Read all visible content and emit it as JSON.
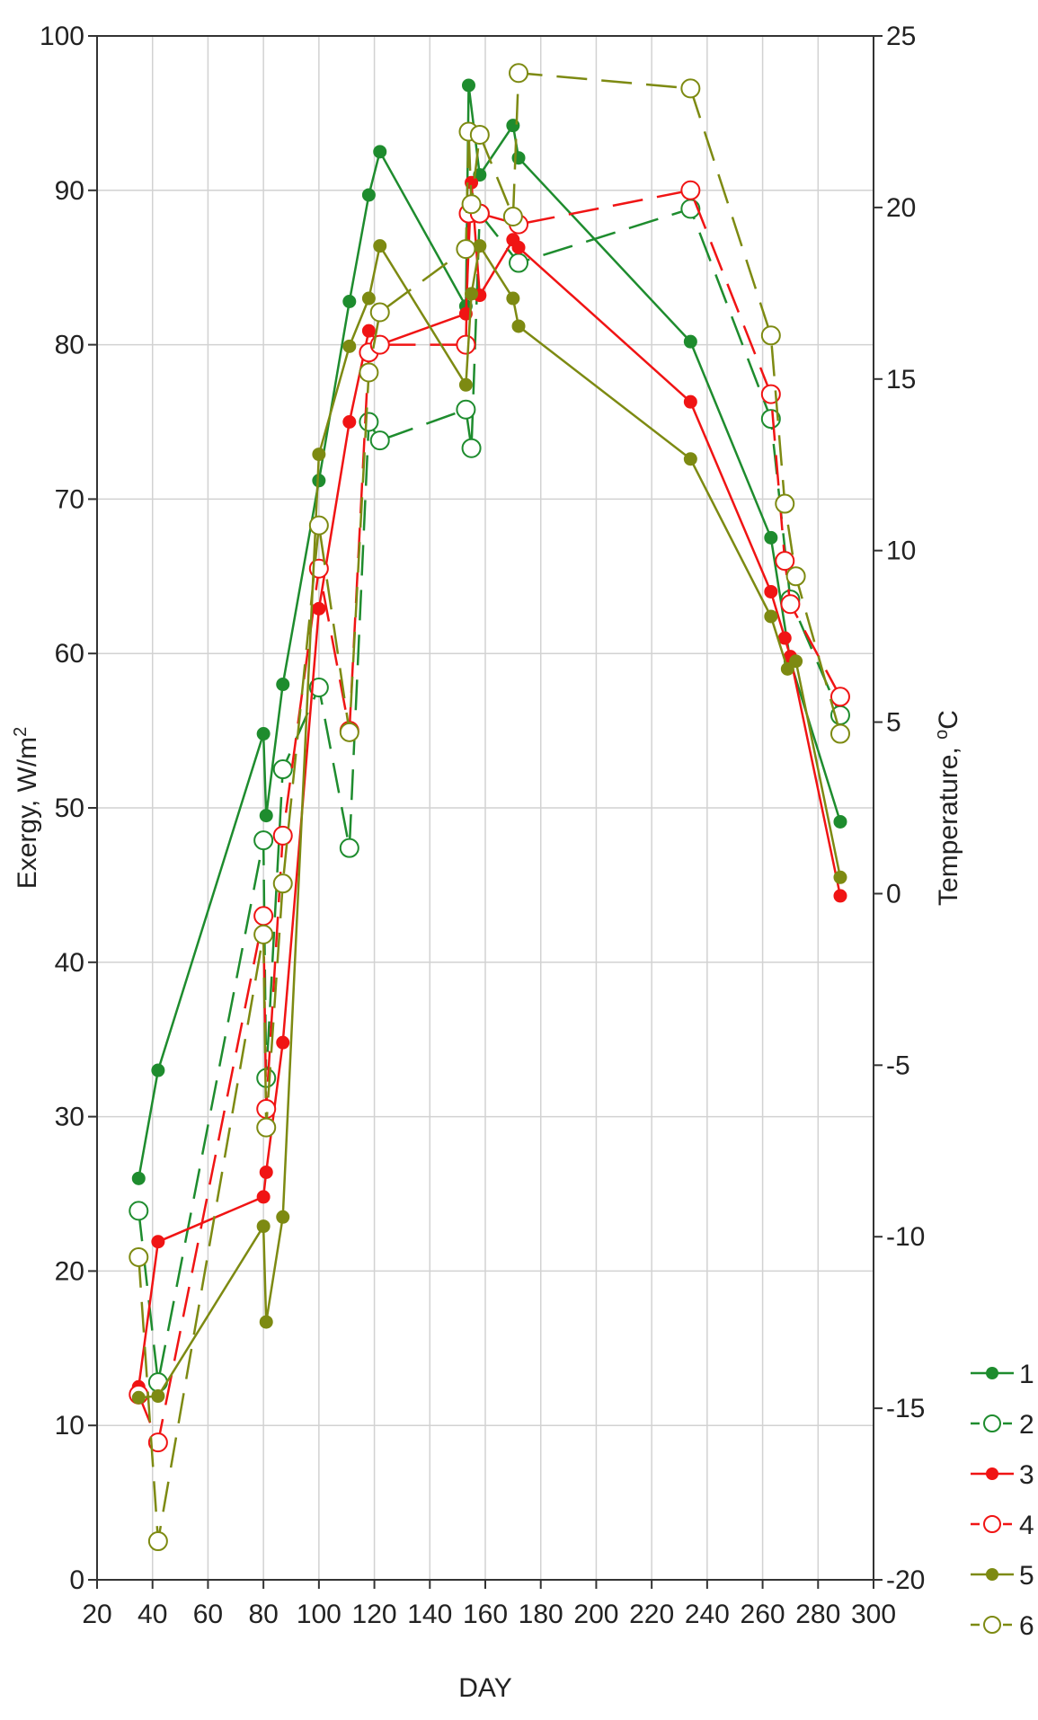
{
  "chart_data": {
    "type": "line",
    "xlabel": "DAY",
    "ylabel": "Exergy, W/m",
    "ylabel_sup": "2",
    "y2label": "Temperature, ",
    "y2label_sup": "o",
    "y2label_unit": "C",
    "xlim": [
      20,
      300
    ],
    "ylim": [
      0,
      100
    ],
    "y2lim": [
      -20,
      25
    ],
    "xticks": [
      20,
      40,
      60,
      80,
      100,
      120,
      140,
      160,
      180,
      200,
      220,
      240,
      260,
      280,
      300
    ],
    "yticks": [
      0,
      10,
      20,
      30,
      40,
      50,
      60,
      70,
      80,
      90,
      100
    ],
    "y2ticks": [
      -20,
      -15,
      -10,
      -5,
      0,
      5,
      10,
      15,
      20,
      25
    ],
    "grid": true,
    "legend_position": "bottom-right",
    "colors": {
      "green": "#1e8c2e",
      "red": "#f01414",
      "olive": "#7d8a12"
    },
    "series": [
      {
        "name": "1",
        "color": "#1e8c2e",
        "filled": true,
        "dashed": false,
        "points": [
          [
            35,
            26
          ],
          [
            42,
            33
          ],
          [
            80,
            54.8
          ],
          [
            81,
            49.5
          ],
          [
            87,
            58
          ],
          [
            100,
            71.2
          ],
          [
            111,
            82.8
          ],
          [
            118,
            89.7
          ],
          [
            122,
            92.5
          ],
          [
            153,
            82.5
          ],
          [
            154,
            96.8
          ],
          [
            158,
            91
          ],
          [
            170,
            94.2
          ],
          [
            172,
            92.1
          ],
          [
            234,
            80.2
          ],
          [
            263,
            67.5
          ],
          [
            270,
            59.5
          ],
          [
            288,
            49.1
          ]
        ]
      },
      {
        "name": "2",
        "color": "#1e8c2e",
        "filled": false,
        "dashed": true,
        "points": [
          [
            35,
            23.9
          ],
          [
            42,
            12.8
          ],
          [
            80,
            47.9
          ],
          [
            81,
            32.5
          ],
          [
            87,
            52.5
          ],
          [
            100,
            57.8
          ],
          [
            111,
            47.4
          ],
          [
            118,
            75
          ],
          [
            122,
            73.8
          ],
          [
            153,
            75.8
          ],
          [
            155,
            73.3
          ],
          [
            158,
            88.5
          ],
          [
            172,
            85.3
          ],
          [
            234,
            88.8
          ],
          [
            263,
            75.2
          ],
          [
            270,
            63.5
          ],
          [
            288,
            56
          ]
        ]
      },
      {
        "name": "3",
        "color": "#f01414",
        "filled": true,
        "dashed": false,
        "points": [
          [
            35,
            12.5
          ],
          [
            42,
            21.9
          ],
          [
            80,
            24.8
          ],
          [
            81,
            26.4
          ],
          [
            87,
            34.8
          ],
          [
            100,
            62.9
          ],
          [
            111,
            75
          ],
          [
            118,
            80.9
          ],
          [
            122,
            80
          ],
          [
            153,
            82
          ],
          [
            155,
            90.5
          ],
          [
            158,
            83.2
          ],
          [
            170,
            86.8
          ],
          [
            172,
            86.3
          ],
          [
            234,
            76.3
          ],
          [
            263,
            64
          ],
          [
            268,
            61
          ],
          [
            270,
            59.8
          ],
          [
            288,
            44.3
          ]
        ]
      },
      {
        "name": "4",
        "color": "#f01414",
        "filled": false,
        "dashed": true,
        "points": [
          [
            35,
            12
          ],
          [
            42,
            8.9
          ],
          [
            80,
            43
          ],
          [
            81,
            30.5
          ],
          [
            87,
            48.2
          ],
          [
            100,
            65.5
          ],
          [
            111,
            55
          ],
          [
            118,
            79.5
          ],
          [
            122,
            80
          ],
          [
            153,
            80
          ],
          [
            154,
            88.5
          ],
          [
            158,
            88.5
          ],
          [
            172,
            87.8
          ],
          [
            234,
            90
          ],
          [
            263,
            76.8
          ],
          [
            268,
            66
          ],
          [
            270,
            63.2
          ],
          [
            288,
            57.2
          ]
        ]
      },
      {
        "name": "5",
        "color": "#7d8a12",
        "filled": true,
        "dashed": false,
        "points": [
          [
            35,
            11.8
          ],
          [
            42,
            11.9
          ],
          [
            80,
            22.9
          ],
          [
            81,
            16.7
          ],
          [
            87,
            23.5
          ],
          [
            100,
            72.9
          ],
          [
            111,
            79.9
          ],
          [
            118,
            83
          ],
          [
            122,
            86.4
          ],
          [
            153,
            77.4
          ],
          [
            155,
            83.3
          ],
          [
            158,
            86.4
          ],
          [
            170,
            83
          ],
          [
            172,
            81.2
          ],
          [
            234,
            72.6
          ],
          [
            263,
            62.4
          ],
          [
            269,
            59
          ],
          [
            272,
            59.5
          ],
          [
            288,
            45.5
          ]
        ]
      },
      {
        "name": "6",
        "color": "#7d8a12",
        "filled": false,
        "dashed": true,
        "points": [
          [
            35,
            20.9
          ],
          [
            42,
            2.5
          ],
          [
            80,
            41.8
          ],
          [
            81,
            29.3
          ],
          [
            87,
            45.1
          ],
          [
            100,
            68.3
          ],
          [
            111,
            54.9
          ],
          [
            118,
            78.2
          ],
          [
            122,
            82.1
          ],
          [
            153,
            86.2
          ],
          [
            154,
            93.8
          ],
          [
            155,
            89.1
          ],
          [
            158,
            93.6
          ],
          [
            170,
            88.3
          ],
          [
            172,
            97.6
          ],
          [
            234,
            96.6
          ],
          [
            263,
            80.6
          ],
          [
            268,
            69.7
          ],
          [
            272,
            65
          ],
          [
            288,
            54.8
          ]
        ]
      }
    ]
  }
}
